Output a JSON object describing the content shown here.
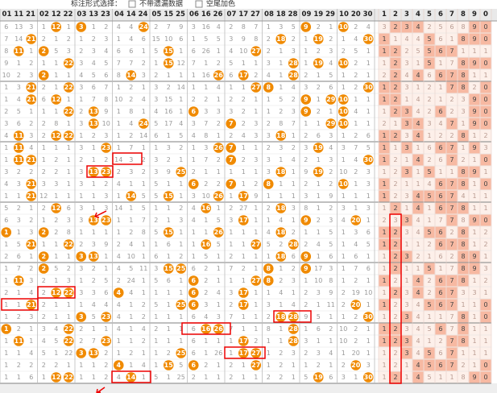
{
  "toolbar": {
    "label": "标注形式选择：",
    "options": [
      "不带遗漏数据",
      "空尾加色"
    ]
  },
  "column_groups": [
    "01 11 21",
    "02 12 22",
    "03 13 23",
    "04 14 24",
    "05 15 25",
    "06 16 26",
    "07 17 27",
    "08 18 28",
    "09 19 29",
    "10 20 30"
  ],
  "digit_headers": [
    "1",
    "2",
    "3",
    "4",
    "5",
    "6",
    "7",
    "8",
    "9",
    "0"
  ],
  "rows": [
    {
      "c": [
        6,
        13,
        3,
        1,
        12,
        1,
        3,
        1,
        2,
        4,
        4,
        24,
        2,
        7,
        9,
        3,
        16,
        4,
        2,
        8,
        7,
        1,
        3,
        5,
        9,
        2,
        1,
        10,
        2,
        4
      ],
      "d": [
        12,
        3,
        24,
        9,
        10
      ],
      "t": [
        3,
        2,
        3,
        4,
        2,
        5,
        6,
        8,
        9,
        0
      ],
      "h": [
        2,
        3,
        4,
        9,
        0
      ]
    },
    {
      "c": [
        7,
        14,
        21,
        2,
        1,
        2,
        1,
        2,
        3,
        1,
        4,
        6,
        15,
        10,
        6,
        1,
        5,
        5,
        3,
        9,
        8,
        2,
        18,
        2,
        1,
        19,
        2,
        1,
        4,
        30
      ],
      "d": [
        21,
        15,
        30,
        18,
        19
      ],
      "t": [
        1,
        1,
        4,
        4,
        5,
        6,
        1,
        8,
        9,
        0
      ],
      "h": [
        1,
        5,
        8,
        9,
        0
      ]
    },
    {
      "c": [
        8,
        11,
        1,
        2,
        5,
        3,
        2,
        3,
        4,
        6,
        6,
        1,
        5,
        15,
        1,
        6,
        26,
        1,
        4,
        10,
        27,
        2,
        1,
        3,
        1,
        2,
        3,
        2,
        5,
        1
      ],
      "d": [
        11,
        2,
        15,
        26,
        27
      ],
      "t": [
        1,
        2,
        2,
        5,
        5,
        6,
        7,
        1,
        1,
        1
      ],
      "h": [
        1,
        2,
        5,
        6,
        7
      ]
    },
    {
      "c": [
        9,
        1,
        2,
        1,
        1,
        22,
        3,
        4,
        5,
        7,
        7,
        2,
        1,
        15,
        12,
        7,
        1,
        2,
        5,
        1,
        1,
        3,
        1,
        28,
        1,
        19,
        4,
        10,
        2,
        1
      ],
      "d": [
        22,
        15,
        28,
        19,
        10
      ],
      "t": [
        1,
        2,
        3,
        1,
        5,
        1,
        7,
        8,
        9,
        0
      ],
      "h": [
        2,
        5,
        8,
        9,
        0
      ]
    },
    {
      "c": [
        10,
        2,
        3,
        2,
        1,
        1,
        4,
        5,
        6,
        8,
        14,
        3,
        2,
        1,
        1,
        1,
        16,
        26,
        6,
        17,
        2,
        4,
        1,
        28,
        2,
        1,
        5,
        1,
        2,
        1
      ],
      "d": [
        2,
        14,
        26,
        17,
        28
      ],
      "t": [
        2,
        2,
        4,
        4,
        6,
        6,
        7,
        8,
        1,
        1
      ],
      "h": [
        2,
        4,
        6,
        7,
        8
      ]
    },
    {
      "c": [
        1,
        3,
        21,
        2,
        1,
        22,
        3,
        6,
        7,
        1,
        2,
        1,
        3,
        2,
        14,
        1,
        1,
        4,
        1,
        1,
        27,
        8,
        1,
        4,
        3,
        2,
        6,
        1,
        2,
        30
      ],
      "d": [
        21,
        22,
        27,
        8,
        30
      ],
      "t": [
        1,
        2,
        3,
        1,
        2,
        1,
        7,
        8,
        2,
        0
      ],
      "h": [
        1,
        2,
        7,
        8,
        0
      ]
    },
    {
      "c": [
        1,
        4,
        21,
        6,
        12,
        1,
        1,
        7,
        8,
        10,
        2,
        4,
        3,
        15,
        1,
        2,
        2,
        1,
        2,
        2,
        1,
        1,
        5,
        2,
        9,
        1,
        29,
        10,
        1,
        1
      ],
      "d": [
        21,
        12,
        9,
        29,
        10
      ],
      "t": [
        1,
        2,
        1,
        4,
        2,
        1,
        2,
        3,
        9,
        0
      ],
      "h": [
        1,
        2,
        9,
        0
      ]
    },
    {
      "c": [
        2,
        5,
        1,
        1,
        1,
        22,
        2,
        13,
        9,
        1,
        8,
        1,
        4,
        16,
        1,
        6,
        3,
        3,
        3,
        2,
        1,
        1,
        2,
        3,
        9,
        2,
        1,
        10,
        4,
        1
      ],
      "d": [
        22,
        9,
        10,
        6,
        13
      ],
      "t": [
        1,
        2,
        3,
        4,
        2,
        6,
        2,
        3,
        9,
        0
      ],
      "h": [
        2,
        3,
        6,
        9,
        0
      ]
    },
    {
      "c": [
        3,
        6,
        2,
        2,
        8,
        1,
        3,
        13,
        10,
        1,
        4,
        24,
        5,
        17,
        4,
        3,
        7,
        2,
        7,
        2,
        3,
        2,
        8,
        7,
        1,
        1,
        29,
        10,
        1,
        1
      ],
      "d": [
        13,
        24,
        7,
        29,
        10
      ],
      "t": [
        2,
        1,
        3,
        4,
        3,
        4,
        7,
        1,
        9,
        0
      ],
      "h": [
        3,
        4,
        7,
        9,
        0
      ]
    },
    {
      "c": [
        4,
        11,
        3,
        2,
        12,
        22,
        1,
        2,
        3,
        1,
        2,
        14,
        6,
        1,
        5,
        4,
        8,
        1,
        2,
        4,
        3,
        3,
        18,
        1,
        2,
        6,
        3,
        1,
        2,
        6
      ],
      "d": [
        11,
        12,
        22,
        14,
        18
      ],
      "t": [
        1,
        2,
        3,
        4,
        1,
        2,
        2,
        8,
        1,
        2
      ],
      "h": [
        1,
        2,
        4,
        8
      ]
    },
    {
      "c": [
        1,
        11,
        4,
        1,
        1,
        1,
        3,
        1,
        23,
        1,
        7,
        1,
        1,
        3,
        2,
        1,
        3,
        26,
        7,
        1,
        1,
        2,
        3,
        2,
        3,
        19,
        4,
        3,
        7,
        5
      ],
      "d": [
        11,
        23,
        26,
        7,
        19
      ],
      "t": [
        1,
        1,
        3,
        1,
        6,
        6,
        7,
        1,
        9,
        3
      ],
      "h": [
        1,
        3,
        6,
        7,
        9
      ]
    },
    {
      "c": [
        1,
        11,
        21,
        1,
        2,
        1,
        2,
        1,
        2,
        14,
        3,
        2,
        3,
        2,
        1,
        1,
        7,
        2,
        7,
        2,
        3,
        3,
        1,
        4,
        2,
        1,
        3,
        1,
        4,
        30
      ],
      "d": [
        11,
        21,
        14,
        7,
        30
      ],
      "t": [
        1,
        2,
        1,
        4,
        2,
        6,
        7,
        2,
        1,
        0
      ],
      "h": [
        1,
        4,
        7,
        0
      ]
    },
    {
      "c": [
        3,
        2,
        2,
        2,
        2,
        1,
        3,
        13,
        23,
        2,
        3,
        2,
        3,
        9,
        25,
        2,
        1,
        1,
        1,
        1,
        1,
        3,
        18,
        1,
        9,
        19,
        2,
        10,
        2,
        3
      ],
      "d": [
        13,
        23,
        25,
        18,
        19
      ],
      "t": [
        1,
        2,
        3,
        1,
        5,
        1,
        1,
        8,
        9,
        1
      ],
      "h": [
        3,
        5,
        8,
        9
      ]
    },
    {
      "c": [
        4,
        3,
        21,
        3,
        3,
        1,
        3,
        1,
        2,
        4,
        1,
        1,
        5,
        1,
        1,
        6,
        2,
        2,
        7,
        1,
        2,
        8,
        1,
        1,
        2,
        1,
        2,
        10,
        1,
        3
      ],
      "d": [
        21,
        6,
        7,
        8,
        10
      ],
      "t": [
        1,
        2,
        1,
        1,
        4,
        6,
        7,
        8,
        1,
        0
      ],
      "h": [
        1,
        6,
        7,
        8,
        0
      ]
    },
    {
      "c": [
        1,
        1,
        21,
        12,
        1,
        1,
        1,
        1,
        3,
        1,
        14,
        5,
        5,
        15,
        1,
        3,
        10,
        26,
        1,
        17,
        9,
        1,
        1,
        1,
        3,
        1,
        9,
        1,
        1,
        1
      ],
      "d": [
        21,
        14,
        26,
        17,
        15
      ],
      "t": [
        1,
        2,
        3,
        4,
        5,
        6,
        7,
        4,
        1,
        1
      ],
      "h": [
        1,
        4,
        5,
        6,
        7
      ]
    },
    {
      "c": [
        5,
        2,
        1,
        2,
        12,
        6,
        3,
        1,
        3,
        14,
        1,
        5,
        1,
        1,
        2,
        4,
        16,
        1,
        2,
        27,
        1,
        2,
        18,
        3,
        8,
        1,
        2,
        3,
        1,
        3
      ],
      "d": [
        12,
        14,
        16,
        27,
        18
      ],
      "t": [
        1,
        2,
        1,
        4,
        1,
        6,
        7,
        8,
        1,
        1
      ],
      "h": [
        2,
        4,
        6,
        7,
        8
      ]
    },
    {
      "c": [
        6,
        3,
        2,
        1,
        2,
        3,
        3,
        13,
        23,
        1,
        1,
        7,
        2,
        1,
        3,
        4,
        1,
        5,
        3,
        17,
        1,
        1,
        4,
        1,
        9,
        2,
        3,
        4,
        20,
        1
      ],
      "d": [
        13,
        23,
        17,
        20,
        9
      ],
      "t": [
        2,
        3,
        3,
        4,
        1,
        7,
        7,
        8,
        9,
        0
      ],
      "h": [
        3,
        7,
        9,
        0
      ]
    },
    {
      "c": [
        1,
        1,
        3,
        2,
        2,
        8,
        1,
        1,
        1,
        1,
        2,
        8,
        5,
        15,
        1,
        1,
        1,
        26,
        1,
        1,
        1,
        4,
        18,
        2,
        1,
        1,
        5,
        1,
        3,
        6
      ],
      "d": [
        1,
        2,
        15,
        26,
        18
      ],
      "t": [
        1,
        2,
        3,
        4,
        5,
        6,
        2,
        8,
        1,
        2
      ],
      "h": [
        1,
        2,
        5,
        6,
        8
      ]
    },
    {
      "c": [
        1,
        5,
        21,
        1,
        1,
        22,
        2,
        3,
        9,
        2,
        4,
        1,
        1,
        6,
        1,
        1,
        16,
        5,
        1,
        1,
        27,
        5,
        2,
        28,
        2,
        4,
        5,
        1,
        4,
        5
      ],
      "d": [
        21,
        22,
        16,
        27,
        28
      ],
      "t": [
        1,
        2,
        1,
        1,
        2,
        6,
        7,
        8,
        1,
        2
      ],
      "h": [
        1,
        2,
        6,
        7,
        8
      ]
    },
    {
      "c": [
        2,
        6,
        1,
        2,
        1,
        1,
        3,
        13,
        1,
        4,
        10,
        1,
        6,
        1,
        2,
        1,
        5,
        1,
        2,
        1,
        1,
        1,
        18,
        6,
        9,
        1,
        6,
        1,
        6,
        1
      ],
      "d": [
        2,
        3,
        13,
        18,
        9
      ],
      "t": [
        1,
        2,
        3,
        2,
        1,
        6,
        2,
        8,
        9,
        1
      ],
      "h": [
        2,
        3,
        8,
        9
      ]
    },
    {
      "c": [
        1,
        7,
        2,
        2,
        5,
        2,
        3,
        2,
        1,
        4,
        5,
        11,
        3,
        15,
        25,
        6,
        2,
        1,
        7,
        2,
        1,
        8,
        1,
        2,
        9,
        17,
        3,
        1,
        7,
        6
      ],
      "d": [
        2,
        8,
        9,
        15,
        25
      ],
      "t": [
        1,
        2,
        1,
        1,
        5,
        1,
        7,
        8,
        9,
        3
      ],
      "h": [
        2,
        5,
        8,
        9
      ]
    },
    {
      "c": [
        1,
        11,
        3,
        2,
        1,
        3,
        1,
        2,
        5,
        2,
        24,
        1,
        5,
        6,
        1,
        6,
        2,
        1,
        1,
        1,
        27,
        8,
        2,
        3,
        1,
        10,
        8,
        1,
        2,
        1
      ],
      "d": [
        11,
        24,
        6,
        27,
        8
      ],
      "t": [
        1,
        2,
        1,
        4,
        2,
        6,
        7,
        8,
        1,
        2
      ],
      "h": [
        1,
        4,
        6,
        7,
        8
      ]
    },
    {
      "c": [
        2,
        1,
        4,
        2,
        12,
        22,
        3,
        3,
        6,
        4,
        4,
        1,
        1,
        1,
        1,
        6,
        2,
        4,
        3,
        17,
        1,
        1,
        4,
        1,
        2,
        3,
        9,
        2,
        19,
        10
      ],
      "d": [
        4,
        6,
        12,
        17,
        22
      ],
      "t": [
        1,
        2,
        3,
        4,
        2,
        6,
        7,
        3,
        3,
        1
      ],
      "h": [
        2,
        4,
        6,
        7
      ]
    },
    {
      "c": [
        1,
        1,
        21,
        2,
        1,
        1,
        1,
        4,
        4,
        4,
        1,
        2,
        5,
        1,
        25,
        6,
        3,
        1,
        2,
        17,
        1,
        3,
        1,
        4,
        2,
        1,
        11,
        2,
        20,
        1
      ],
      "d": [
        21,
        25,
        6,
        17,
        20
      ],
      "t": [
        1,
        2,
        3,
        4,
        5,
        6,
        7,
        1,
        1,
        0
      ],
      "h": [
        1,
        5,
        6,
        7,
        0
      ]
    },
    {
      "c": [
        1,
        2,
        3,
        2,
        1,
        1,
        3,
        5,
        23,
        4,
        1,
        2,
        1,
        1,
        1,
        6,
        4,
        3,
        7,
        1,
        1,
        2,
        18,
        28,
        9,
        5,
        1,
        1,
        2,
        30
      ],
      "d": [
        3,
        23,
        18,
        28,
        30
      ],
      "t": [
        1,
        2,
        3,
        4,
        1,
        1,
        7,
        8,
        1,
        0
      ],
      "h": [
        3,
        8,
        0
      ]
    },
    {
      "c": [
        1,
        2,
        1,
        3,
        4,
        22,
        2,
        1,
        1,
        4,
        1,
        4,
        2,
        1,
        1,
        6,
        16,
        26,
        7,
        1,
        1,
        8,
        1,
        28,
        1,
        6,
        2,
        10,
        2,
        1
      ],
      "d": [
        1,
        22,
        16,
        26,
        28
      ],
      "t": [
        1,
        2,
        3,
        4,
        5,
        6,
        7,
        8,
        1,
        1
      ],
      "h": [
        1,
        2,
        6,
        8
      ]
    },
    {
      "c": [
        1,
        11,
        1,
        4,
        5,
        22,
        2,
        7,
        23,
        1,
        1,
        2,
        1,
        1,
        1,
        6,
        1,
        1,
        1,
        17,
        2,
        1,
        1,
        28,
        3,
        1,
        1,
        10,
        2,
        1
      ],
      "d": [
        11,
        22,
        23,
        17,
        28
      ],
      "t": [
        1,
        2,
        3,
        4,
        1,
        2,
        7,
        8,
        1,
        1
      ],
      "h": [
        1,
        2,
        3,
        7,
        8
      ]
    },
    {
      "c": [
        1,
        1,
        4,
        5,
        1,
        22,
        3,
        13,
        2,
        1,
        2,
        1,
        1,
        2,
        25,
        6,
        1,
        26,
        1,
        17,
        27,
        1,
        2,
        3,
        2,
        3,
        4,
        1,
        20,
        1
      ],
      "d": [
        3,
        13,
        25,
        17,
        27
      ],
      "t": [
        1,
        2,
        3,
        4,
        5,
        6,
        7,
        1,
        1,
        1
      ],
      "h": [
        3,
        5,
        7
      ]
    },
    {
      "c": [
        1,
        2,
        2,
        2,
        2,
        1,
        1,
        1,
        2,
        4,
        1,
        4,
        1,
        15,
        5,
        6,
        2,
        1,
        2,
        1,
        27,
        1,
        2,
        1,
        1,
        2,
        1,
        2,
        20,
        3
      ],
      "d": [
        4,
        15,
        27,
        20,
        6
      ],
      "t": [
        1,
        2,
        1,
        4,
        5,
        6,
        7,
        2,
        1,
        0
      ],
      "h": [
        4,
        5,
        6,
        7,
        0
      ]
    },
    {
      "c": [
        1,
        1,
        6,
        1,
        12,
        22,
        1,
        1,
        2,
        4,
        14,
        1,
        5,
        1,
        25,
        2,
        1,
        1,
        2,
        1,
        1,
        2,
        2,
        1,
        5,
        19,
        6,
        3,
        1,
        30
      ],
      "d": [
        12,
        22,
        14,
        19,
        30
      ],
      "t": [
        1,
        2,
        1,
        4,
        5,
        1,
        1,
        8,
        9,
        0
      ],
      "h": [
        2,
        4,
        9,
        0
      ]
    }
  ]
}
